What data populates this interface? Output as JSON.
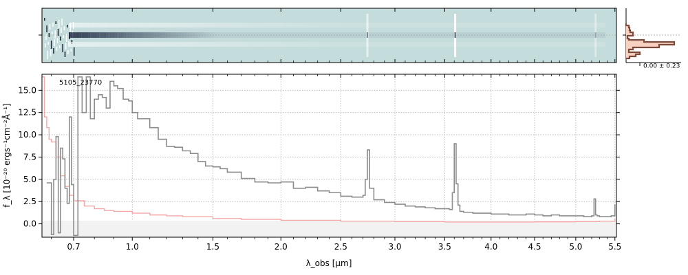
{
  "chart_data": [
    {
      "panel": "2d-spectrum",
      "type": "heatmap",
      "title": "",
      "xlim": [
        0.56,
        5.52
      ],
      "colormap": "gray-blue on cyan-gray",
      "background_color": "#c5dcdc"
    },
    {
      "panel": "histogram",
      "type": "histogram",
      "annotation": "0.00 ± 0.23",
      "fill_color": "#f8d0c0",
      "line_color": "#7a4a3c"
    },
    {
      "panel": "1d-spectrum",
      "type": "line",
      "title": "",
      "object_label": "5105_23770",
      "xlabel": "λ_obs [μm]",
      "ylabel": "f_λ [10⁻²⁰ ergs⁻¹cm⁻²Å⁻¹]",
      "ylim": [
        -1.5,
        16.8
      ],
      "xlim": [
        0.56,
        5.52
      ],
      "x_scale": "sqrt",
      "grid": true,
      "x_ticks": [
        0.7,
        1.0,
        1.5,
        2.0,
        2.5,
        3.0,
        3.5,
        4.0,
        4.5,
        5.0,
        5.5
      ],
      "x_tick_labels": [
        "0.7",
        "1.0",
        "1.5",
        "2.0",
        "2.5",
        "3.0",
        "3.5",
        "4.0",
        "4.5",
        "5.0",
        "5.5"
      ],
      "x_minor_ticks": [
        0.6,
        0.8,
        0.9,
        1.1,
        1.2,
        1.3,
        1.4,
        1.6,
        1.7,
        1.8,
        1.9,
        2.1,
        2.2,
        2.3,
        2.4,
        2.6,
        2.7,
        2.8,
        2.9,
        3.1,
        3.2,
        3.3,
        3.4,
        3.6,
        3.7,
        3.8,
        3.9,
        4.1,
        4.2,
        4.3,
        4.4,
        4.6,
        4.7,
        4.8,
        4.9,
        5.1,
        5.2,
        5.3,
        5.4
      ],
      "y_ticks": [
        0.0,
        2.5,
        5.0,
        7.5,
        10.0,
        12.5,
        15.0
      ],
      "y_tick_labels": [
        "0.0",
        "2.5",
        "5.0",
        "7.5",
        "10.0",
        "12.5",
        "15.0"
      ],
      "series": [
        {
          "role": "flux",
          "color": "#8c8c8c",
          "x": [
            0.58,
            0.6,
            0.61,
            0.62,
            0.63,
            0.64,
            0.65,
            0.66,
            0.67,
            0.68,
            0.69,
            0.7,
            0.72,
            0.74,
            0.76,
            0.78,
            0.8,
            0.82,
            0.84,
            0.86,
            0.88,
            0.9,
            0.92,
            0.95,
            0.98,
            1.0,
            1.03,
            1.06,
            1.1,
            1.15,
            1.2,
            1.25,
            1.3,
            1.35,
            1.4,
            1.45,
            1.5,
            1.55,
            1.6,
            1.7,
            1.8,
            1.9,
            2.0,
            2.1,
            2.2,
            2.3,
            2.4,
            2.5,
            2.6,
            2.7,
            2.72,
            2.74,
            2.76,
            2.8,
            2.9,
            3.0,
            3.1,
            3.2,
            3.3,
            3.4,
            3.5,
            3.55,
            3.58,
            3.6,
            3.62,
            3.64,
            3.66,
            3.7,
            3.8,
            3.9,
            4.0,
            4.1,
            4.2,
            4.3,
            4.4,
            4.5,
            4.6,
            4.7,
            4.8,
            4.9,
            5.0,
            5.1,
            5.2,
            5.23,
            5.25,
            5.27,
            5.3,
            5.35,
            5.4,
            5.45,
            5.5
          ],
          "y": [
            4.6,
            -1.2,
            5.0,
            9.8,
            -1.0,
            8.5,
            7.3,
            4.0,
            2.3,
            12.0,
            4.4,
            -1.3,
            16.5,
            12.5,
            16.5,
            11.8,
            14.0,
            14.5,
            14.2,
            13.0,
            16.0,
            15.5,
            15.2,
            14.0,
            13.8,
            12.5,
            11.8,
            11.8,
            10.8,
            9.5,
            8.7,
            8.6,
            8.2,
            7.9,
            7.0,
            6.5,
            6.4,
            6.2,
            5.8,
            5.1,
            4.7,
            4.6,
            4.7,
            4.0,
            4.1,
            3.7,
            3.5,
            3.1,
            3.0,
            3.2,
            5.0,
            8.3,
            4.0,
            2.7,
            2.4,
            2.2,
            2.0,
            1.9,
            1.8,
            1.7,
            1.7,
            1.6,
            3.5,
            9.0,
            4.5,
            2.1,
            1.4,
            1.3,
            1.2,
            1.2,
            1.1,
            1.1,
            1.0,
            1.0,
            1.1,
            1.0,
            0.9,
            1.0,
            0.9,
            0.9,
            0.9,
            0.8,
            0.9,
            2.8,
            1.0,
            0.9,
            0.8,
            0.8,
            0.8,
            0.9,
            2.2
          ]
        },
        {
          "role": "error",
          "color": "#f4a9a8",
          "x": [
            0.56,
            0.57,
            0.58,
            0.59,
            0.6,
            0.62,
            0.64,
            0.66,
            0.68,
            0.7,
            0.75,
            0.8,
            0.85,
            0.9,
            1.0,
            1.1,
            1.2,
            1.3,
            1.5,
            1.7,
            2.0,
            2.5,
            3.0,
            3.5,
            4.0,
            4.5,
            5.0,
            5.3,
            5.5
          ],
          "y": [
            16.5,
            12.0,
            10.8,
            9.5,
            9.2,
            7.5,
            5.4,
            4.2,
            3.2,
            2.6,
            2.0,
            1.7,
            1.5,
            1.4,
            1.2,
            1.0,
            0.9,
            0.8,
            0.6,
            0.5,
            0.4,
            0.3,
            0.25,
            0.2,
            0.2,
            0.22,
            0.25,
            0.3,
            0.6
          ]
        }
      ]
    }
  ]
}
